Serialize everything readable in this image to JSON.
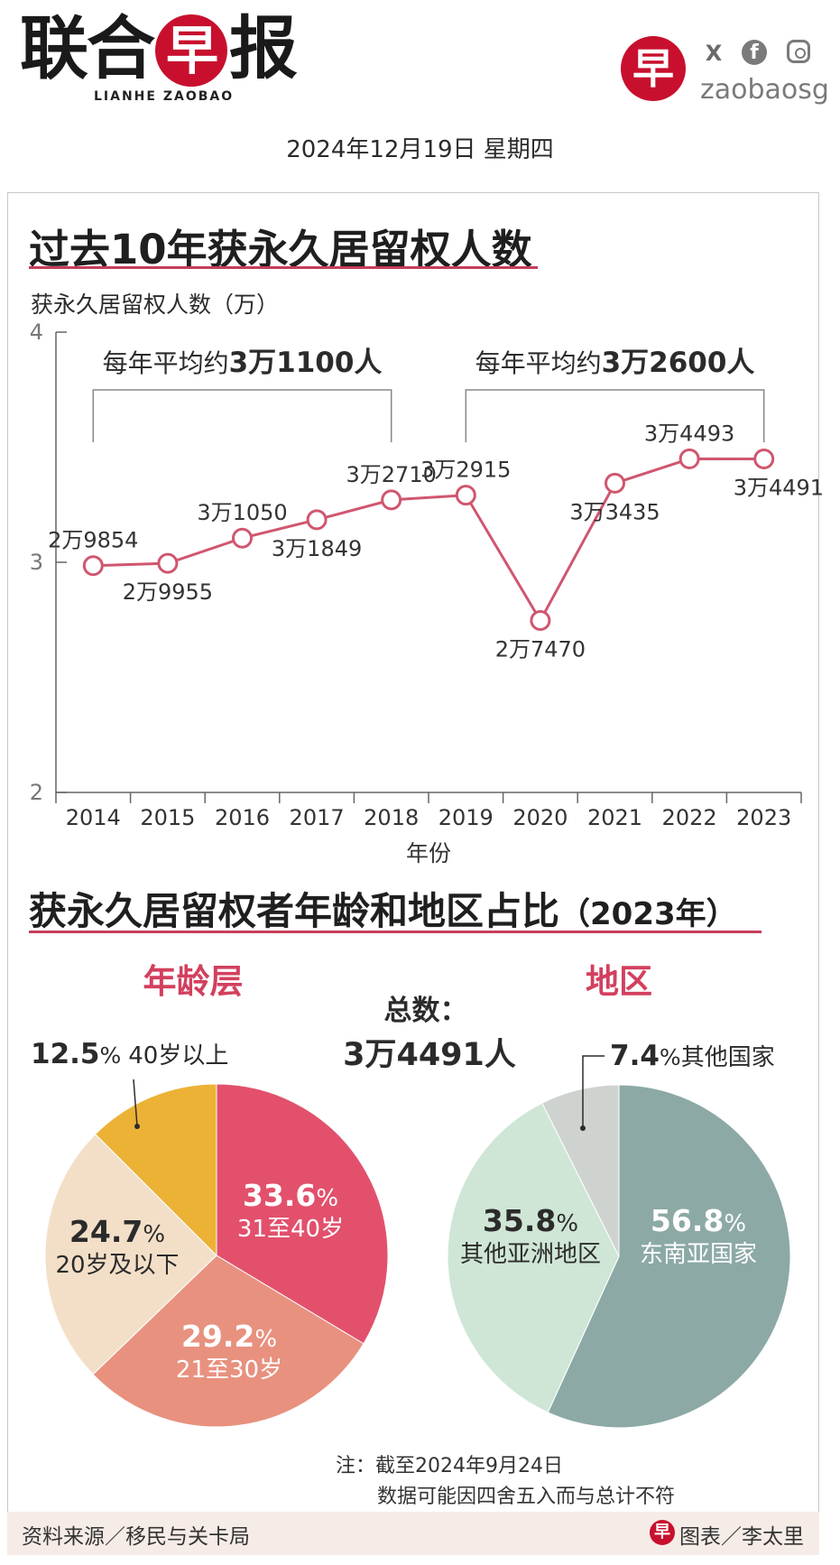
{
  "header": {
    "logo_text_a": "联合",
    "logo_text_b": "早",
    "logo_text_c": "报",
    "logo_subtitle": "LIANHE ZAOBAO",
    "badge_char": "早",
    "social_x": "X",
    "social_fb": "f",
    "handle": "zaobaosg",
    "date": "2024年12月19日 星期四"
  },
  "colors": {
    "accent_red": "#c8102e",
    "line": "#d0566f",
    "age_31_40": "#e2506c",
    "age_21_30": "#e8917f",
    "age_20_below": "#f3dfc8",
    "age_40_above": "#ecb236",
    "sea": "#8ca9a6",
    "other_asia": "#cfe6d6",
    "other_countries": "#cfd3cf"
  },
  "chart_data": [
    {
      "type": "line",
      "title": "过去10年获永久居留权人数",
      "ylabel": "获永久居留权人数（万）",
      "xlabel": "年份",
      "ylim": [
        2,
        4
      ],
      "yticks": [
        "2",
        "3",
        "4"
      ],
      "x": [
        "2014",
        "2015",
        "2016",
        "2017",
        "2018",
        "2019",
        "2020",
        "2021",
        "2022",
        "2023"
      ],
      "values": [
        29854,
        29955,
        31050,
        31849,
        32710,
        32915,
        27470,
        33435,
        34493,
        34491
      ],
      "labels": [
        "2万9854",
        "2万9955",
        "3万1050",
        "3万1849",
        "3万2710",
        "3万2915",
        "2万7470",
        "3万3435",
        "3万4493",
        "3万4491"
      ],
      "label_pos": [
        "above",
        "below",
        "above",
        "below",
        "above",
        "above",
        "below",
        "below",
        "above",
        "below"
      ],
      "annotations": [
        {
          "from": "2014",
          "to": "2018",
          "text_a": "每年平均约",
          "text_b": "3万1100人"
        },
        {
          "from": "2019",
          "to": "2023",
          "text_a": "每年平均约",
          "text_b": "3万2600人"
        }
      ]
    },
    {
      "type": "pie",
      "title": "获永久居留权者年龄和地区占比",
      "title_note": "（2023年）",
      "subtitle": "年龄层",
      "slices": [
        {
          "label": "31至40岁",
          "value": 33.6,
          "pct": "33.6%"
        },
        {
          "label": "21至30岁",
          "value": 29.2,
          "pct": "29.2%"
        },
        {
          "label": "20岁及以下",
          "value": 24.7,
          "pct": "24.7%"
        },
        {
          "label": "40岁以上",
          "value": 12.5,
          "pct": "12.5%"
        }
      ]
    },
    {
      "type": "pie",
      "subtitle": "地区",
      "slices": [
        {
          "label": "东南亚国家",
          "value": 56.8,
          "pct": "56.8%"
        },
        {
          "label": "其他亚洲地区",
          "value": 35.8,
          "pct": "35.8%"
        },
        {
          "label": "其他国家",
          "value": 7.4,
          "pct": "7.4%"
        }
      ]
    }
  ],
  "total": {
    "label": "总数：",
    "value": "3万4491人"
  },
  "notes": {
    "line1": "注：截至2024年9月24日",
    "line2": "数据可能因四舍五入而与总计不符"
  },
  "footer": {
    "source": "资料来源／移民与关卡局",
    "credit_badge": "早",
    "credit": "图表／李太里"
  }
}
